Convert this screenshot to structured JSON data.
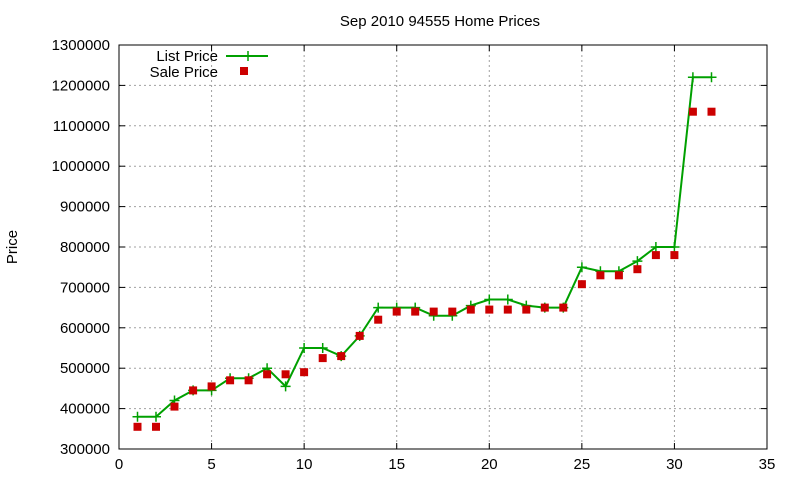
{
  "chart_data": {
    "type": "line",
    "title": "Sep 2010 94555 Home Prices",
    "xlabel": "",
    "ylabel": "Price",
    "xlim": [
      0,
      35
    ],
    "ylim": [
      300000,
      1300000
    ],
    "xticks": [
      "0",
      "5",
      "10",
      "15",
      "20",
      "25",
      "30",
      "35"
    ],
    "yticks": [
      "300000",
      "400000",
      "500000",
      "600000",
      "700000",
      "800000",
      "900000",
      "1000000",
      "1100000",
      "1200000",
      "1300000"
    ],
    "grid": true,
    "legend_position": "top-left",
    "x": [
      1,
      2,
      3,
      4,
      5,
      6,
      7,
      8,
      9,
      10,
      11,
      12,
      13,
      14,
      15,
      16,
      17,
      18,
      19,
      20,
      21,
      22,
      23,
      24,
      25,
      26,
      27,
      28,
      29,
      30,
      31,
      32
    ],
    "series": [
      {
        "name": "List Price",
        "style": "lines-and-points",
        "color": "#00a000",
        "values": [
          380000,
          380000,
          420000,
          445000,
          445000,
          475000,
          475000,
          500000,
          455000,
          550000,
          550000,
          530000,
          580000,
          650000,
          650000,
          650000,
          630000,
          630000,
          655000,
          670000,
          670000,
          655000,
          650000,
          650000,
          750000,
          740000,
          740000,
          765000,
          800000,
          800000,
          1220000,
          1220000
        ]
      },
      {
        "name": "Sale Price",
        "style": "points",
        "color": "#cc0000",
        "values": [
          355000,
          355000,
          405000,
          445000,
          455000,
          470000,
          470000,
          485000,
          485000,
          490000,
          525000,
          530000,
          580000,
          620000,
          640000,
          640000,
          640000,
          640000,
          645000,
          645000,
          645000,
          645000,
          650000,
          650000,
          708000,
          730000,
          730000,
          745000,
          780000,
          780000,
          1135000,
          1135000
        ]
      }
    ]
  }
}
